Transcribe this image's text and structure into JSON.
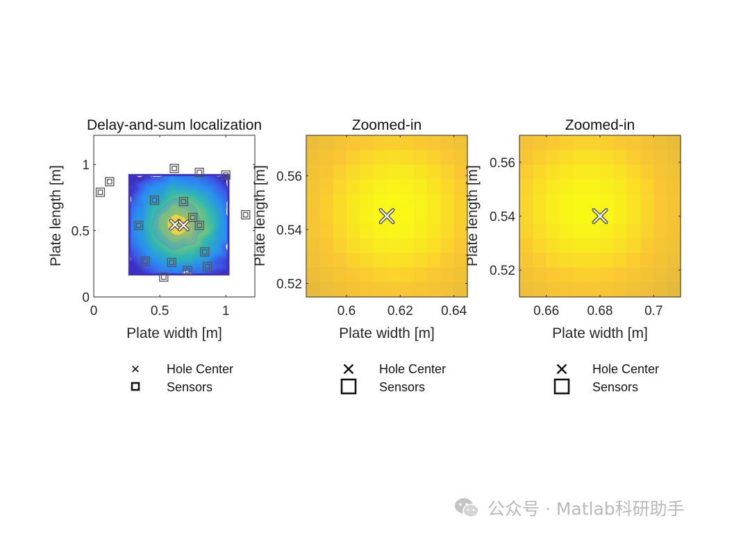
{
  "watermark": {
    "text": "公众号 · Matlab科研助手",
    "icon": "wechat-icon"
  },
  "colors": {
    "sensor_stroke": "#555555",
    "hole_marker_stroke": "#ffffff",
    "axis": "#262626"
  },
  "chart_data": [
    {
      "type": "heatmap",
      "title": "Delay-and-sum localization",
      "xlabel": "Plate width [m]",
      "ylabel": "Plate length [m]",
      "xlim": [
        0,
        1.22
      ],
      "ylim": [
        0,
        1.22
      ],
      "xticks": [
        0,
        0.5,
        1
      ],
      "yticks": [
        0,
        0.5,
        1
      ],
      "xtick_labels": [
        "0",
        "0.5",
        "1"
      ],
      "ytick_labels": [
        "0",
        "0.5",
        "1"
      ],
      "image_extent": {
        "x": [
          0.27,
          1.02
        ],
        "y": [
          0.17,
          0.92
        ]
      },
      "peak": {
        "x": 0.63,
        "y": 0.55
      },
      "holes": [
        {
          "x": 0.615,
          "y": 0.545
        },
        {
          "x": 0.68,
          "y": 0.54
        }
      ],
      "sensors": [
        {
          "x": 0.05,
          "y": 0.79
        },
        {
          "x": 0.12,
          "y": 0.87
        },
        {
          "x": 0.61,
          "y": 0.97
        },
        {
          "x": 0.8,
          "y": 0.94
        },
        {
          "x": 1.0,
          "y": 0.92
        },
        {
          "x": 1.15,
          "y": 0.62
        },
        {
          "x": 0.46,
          "y": 0.73
        },
        {
          "x": 0.68,
          "y": 0.72
        },
        {
          "x": 0.34,
          "y": 0.54
        },
        {
          "x": 0.75,
          "y": 0.6
        },
        {
          "x": 0.8,
          "y": 0.54
        },
        {
          "x": 0.84,
          "y": 0.34
        },
        {
          "x": 0.39,
          "y": 0.27
        },
        {
          "x": 0.59,
          "y": 0.26
        },
        {
          "x": 0.71,
          "y": 0.2
        },
        {
          "x": 0.86,
          "y": 0.23
        },
        {
          "x": 0.53,
          "y": 0.15
        }
      ],
      "legend": {
        "placement": "bottom",
        "entries": [
          "Hole Center",
          "Sensors"
        ]
      }
    },
    {
      "type": "heatmap",
      "title": "Zoomed-in",
      "xlabel": "Plate width [m]",
      "ylabel": "Plate length [m]",
      "xlim": [
        0.585,
        0.645
      ],
      "ylim": [
        0.515,
        0.575
      ],
      "xticks": [
        0.6,
        0.62,
        0.64
      ],
      "yticks": [
        0.52,
        0.54,
        0.56
      ],
      "xtick_labels": [
        "0.6",
        "0.62",
        "0.64"
      ],
      "ytick_labels": [
        "0.52",
        "0.54",
        "0.56"
      ],
      "grid": {
        "cols": 12,
        "rows": 11
      },
      "peak": {
        "x": 0.618,
        "y": 0.547
      },
      "holes": [
        {
          "x": 0.615,
          "y": 0.545
        }
      ],
      "legend": {
        "placement": "bottom",
        "entries": [
          "Hole Center",
          "Sensors"
        ]
      }
    },
    {
      "type": "heatmap",
      "title": "Zoomed-in",
      "xlabel": "Plate width [m]",
      "ylabel": "Plate length [m]",
      "xlim": [
        0.65,
        0.71
      ],
      "ylim": [
        0.51,
        0.57
      ],
      "xticks": [
        0.66,
        0.68,
        0.7
      ],
      "yticks": [
        0.52,
        0.54,
        0.56
      ],
      "xtick_labels": [
        "0.66",
        "0.68",
        "0.7"
      ],
      "ytick_labels": [
        "0.52",
        "0.54",
        "0.56"
      ],
      "grid": {
        "cols": 12,
        "rows": 11
      },
      "peak": {
        "x": 0.675,
        "y": 0.543
      },
      "holes": [
        {
          "x": 0.68,
          "y": 0.54
        }
      ],
      "legend": {
        "placement": "bottom",
        "entries": [
          "Hole Center",
          "Sensors"
        ]
      }
    }
  ]
}
